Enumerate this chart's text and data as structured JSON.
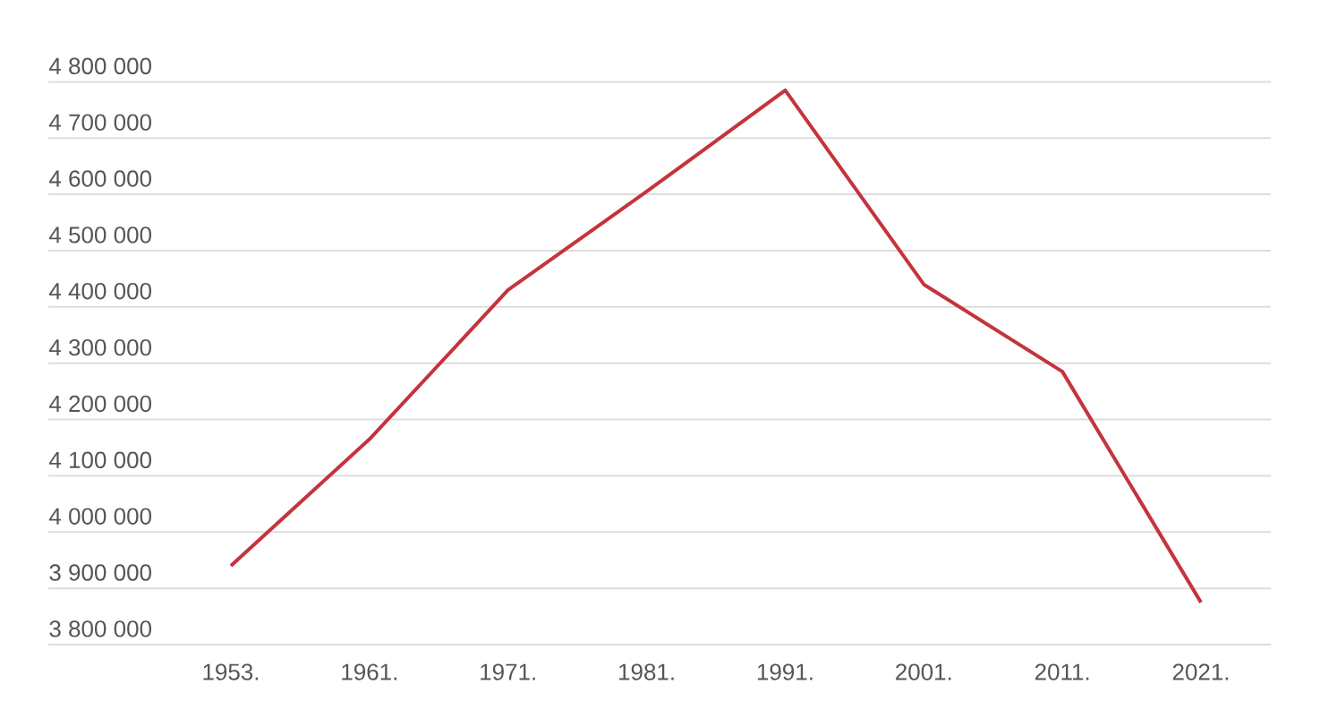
{
  "chart_data": {
    "type": "line",
    "categories": [
      "1953.",
      "1961.",
      "1971.",
      "1981.",
      "1991.",
      "2001.",
      "2011.",
      "2021."
    ],
    "series": [
      {
        "color": "#c4343c",
        "values": [
          3940000,
          4165000,
          4430000,
          4605000,
          4785000,
          4440000,
          4285000,
          3875000
        ]
      }
    ],
    "ylim": [
      3800000,
      4800000
    ],
    "yticks": [
      {
        "value": 3800000,
        "label": "3 800 000"
      },
      {
        "value": 3900000,
        "label": "3 900 000"
      },
      {
        "value": 4000000,
        "label": "4 000 000"
      },
      {
        "value": 4100000,
        "label": "4 100 000"
      },
      {
        "value": 4200000,
        "label": "4 200 000"
      },
      {
        "value": 4300000,
        "label": "4 300 000"
      },
      {
        "value": 4400000,
        "label": "4 400 000"
      },
      {
        "value": 4500000,
        "label": "4 500 000"
      },
      {
        "value": 4600000,
        "label": "4 600 000"
      },
      {
        "value": 4700000,
        "label": "4 700 000"
      },
      {
        "value": 4800000,
        "label": "4 800 000"
      }
    ],
    "grid": "y",
    "marker": "none",
    "line_style": "solid"
  }
}
